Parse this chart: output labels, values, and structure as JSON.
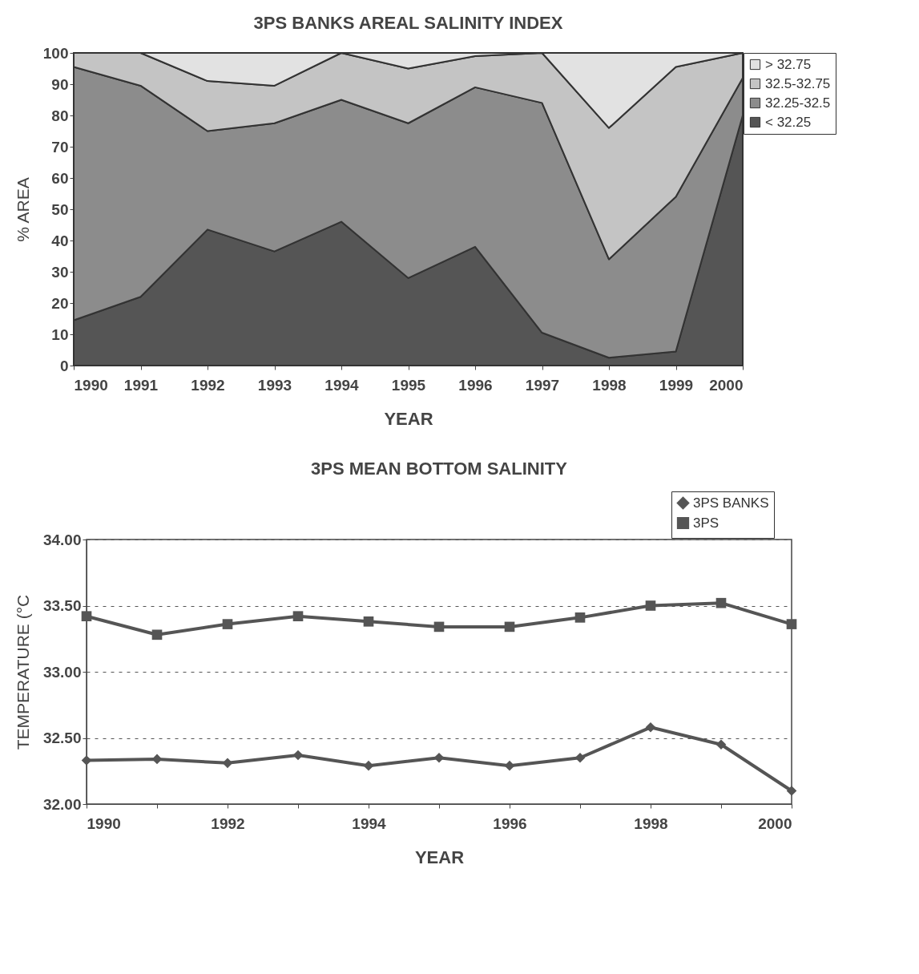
{
  "chart_data": [
    {
      "type": "area",
      "title": "3PS BANKS AREAL SALINITY INDEX",
      "xlabel": "YEAR",
      "ylabel": "% AREA",
      "stacked": true,
      "x": [
        1990,
        1991,
        1992,
        1993,
        1994,
        1995,
        1996,
        1997,
        1998,
        1999,
        2000
      ],
      "xlim": [
        1990,
        2000
      ],
      "xticks": [
        1990,
        1991,
        1992,
        1993,
        1994,
        1995,
        1996,
        1997,
        1998,
        1999,
        2000
      ],
      "ylim": [
        0,
        100
      ],
      "yticks": [
        0,
        10,
        20,
        30,
        40,
        50,
        60,
        70,
        80,
        90,
        100
      ],
      "grid": false,
      "legend": "right",
      "series": [
        {
          "name": "< 32.25",
          "color": "#555555",
          "values": [
            14.5,
            22,
            43.5,
            36.5,
            46,
            28,
            38,
            10.5,
            2.5,
            4.5,
            80
          ]
        },
        {
          "name": "32.25-32.5",
          "color": "#8c8c8c",
          "values": [
            81,
            67.5,
            31.5,
            41,
            39,
            49.5,
            51,
            73.5,
            31.5,
            49.5,
            12
          ]
        },
        {
          "name": "32.5-32.75",
          "color": "#c4c4c4",
          "values": [
            4.5,
            10.5,
            16,
            12,
            15,
            17.5,
            10,
            16,
            42,
            41.5,
            8
          ]
        },
        {
          "name": "> 32.75",
          "color": "#e2e2e2",
          "values": [
            0,
            0,
            9,
            10.5,
            0,
            5,
            1,
            0,
            24,
            4.5,
            0
          ]
        }
      ]
    },
    {
      "type": "line",
      "title": "3PS MEAN BOTTOM SALINITY",
      "xlabel": "YEAR",
      "ylabel": "TEMPERATURE (°C",
      "x": [
        1990,
        1991,
        1992,
        1993,
        1994,
        1995,
        1996,
        1997,
        1998,
        1999,
        2000
      ],
      "xlim": [
        1990,
        2000
      ],
      "xticks": [
        1990,
        {
          "value": 1991,
          "label": null
        },
        1992,
        {
          "value": 1993,
          "label": null
        },
        1994,
        {
          "value": 1995,
          "label": null
        },
        1996,
        {
          "value": 1997,
          "label": null
        },
        1998,
        {
          "value": 1999,
          "label": null
        },
        2000
      ],
      "ylim": [
        32,
        34
      ],
      "yticks": [
        {
          "value": 32,
          "label": "32.00"
        },
        {
          "value": 32.5,
          "label": "32.50"
        },
        {
          "value": 33,
          "label": "33.00"
        },
        {
          "value": 33.5,
          "label": "33.50"
        },
        {
          "value": 34,
          "label": "34.00"
        }
      ],
      "grid": "y",
      "legend": "top right",
      "line_style": "solid",
      "series": [
        {
          "name": "3PS BANKS",
          "color": "#555555",
          "marker": "diamond",
          "values": [
            32.33,
            32.34,
            32.31,
            32.37,
            32.29,
            32.35,
            32.29,
            32.35,
            32.58,
            32.45,
            32.1
          ]
        },
        {
          "name": "3PS",
          "color": "#555555",
          "marker": "square",
          "values": [
            33.42,
            33.28,
            33.36,
            33.42,
            33.38,
            33.34,
            33.34,
            33.41,
            33.5,
            33.52,
            33.36
          ]
        }
      ]
    }
  ]
}
